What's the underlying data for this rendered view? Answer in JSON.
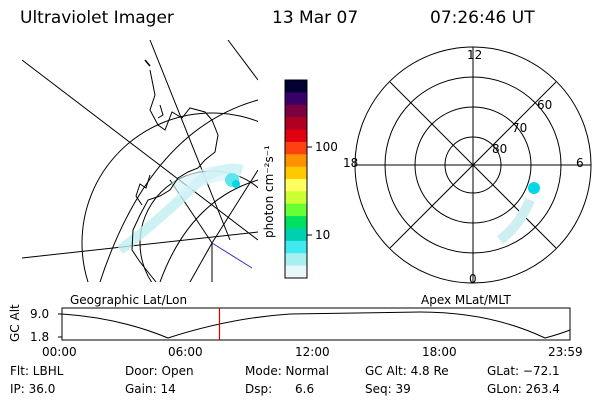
{
  "header": {
    "title": "Ultraviolet Imager",
    "date": "13 Mar 07",
    "time": "07:26:46 UT"
  },
  "colorbar": {
    "unit_label": "photon cm⁻²s⁻¹",
    "ticks": [
      "100",
      "10"
    ],
    "colors": [
      "#000033",
      "#3a006a",
      "#7a0040",
      "#b00020",
      "#e00010",
      "#ff4010",
      "#ff9000",
      "#ffc800",
      "#ffff60",
      "#ccff33",
      "#66ff33",
      "#00e060",
      "#00d0b0",
      "#40e8f0",
      "#a8f0f0",
      "#e8f8f8"
    ]
  },
  "geo_map": {
    "label": "Geographic Lat/Lon"
  },
  "polar_plot": {
    "label": "Apex MLat/MLT",
    "mlt_labels": {
      "top": "12",
      "bottom": "0",
      "left": "18",
      "right": "6"
    },
    "lat_labels": [
      "60",
      "70",
      "80"
    ]
  },
  "altitude_plot": {
    "ylabel": "GC Alt",
    "yticks": [
      "9.0",
      "1.8"
    ],
    "xticks": [
      "00:00",
      "06:00",
      "12:00",
      "18:00",
      "23:59"
    ],
    "current_time_fraction": 0.31
  },
  "info": {
    "filter": "Flt: LBHL",
    "door": "Door: Open",
    "mode": "Mode: Normal",
    "gc_alt": "GC Alt: 4.8 Re",
    "glat": "GLat: −72.1",
    "ip": "IP: 36.0",
    "gain": "Gain: 14",
    "dsp": "Dsp:      6.6",
    "seq": "Seq: 39",
    "glon": "GLon: 263.4"
  },
  "accent_colors": {
    "aurora": "#00d8e8",
    "time_marker": "#e00000",
    "meridian": "#3030c0"
  }
}
